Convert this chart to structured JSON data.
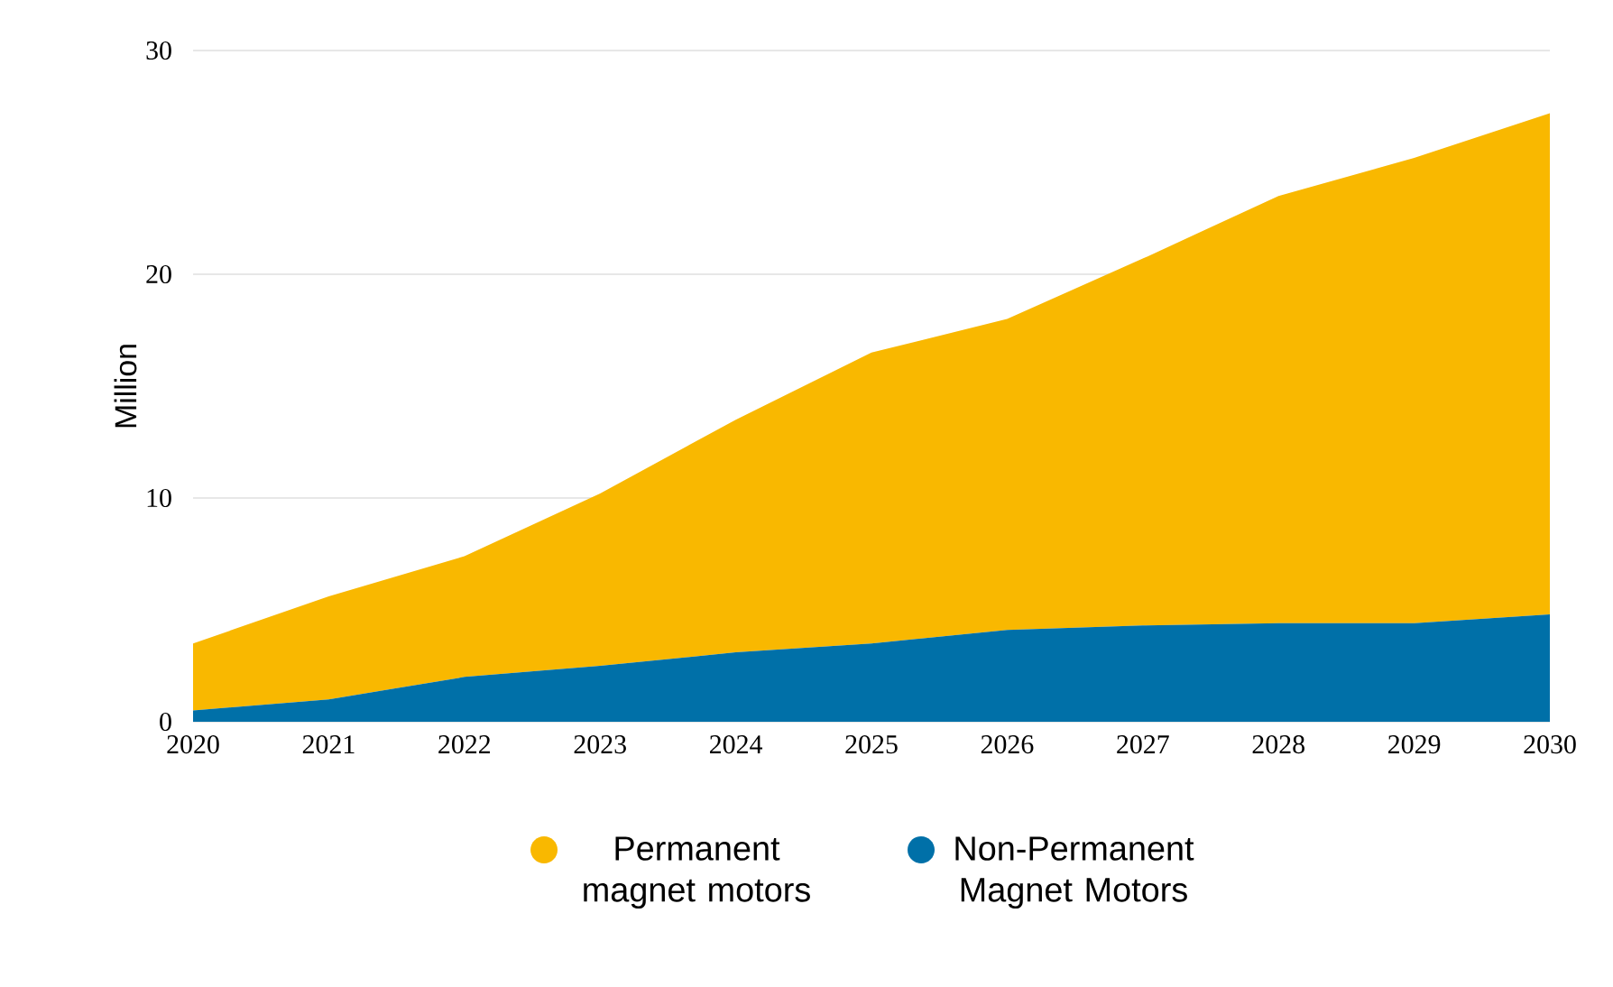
{
  "chart_data": {
    "type": "area",
    "stacked": true,
    "ylabel": "Million",
    "categories": [
      "2020",
      "2021",
      "2022",
      "2023",
      "2024",
      "2025",
      "2026",
      "2027",
      "2028",
      "2029",
      "2030"
    ],
    "series": [
      {
        "name": "Non-Permanent Magnet Motors",
        "color": "#0070a8",
        "values": [
          0.5,
          1.0,
          2.0,
          2.5,
          3.1,
          3.5,
          4.1,
          4.3,
          4.4,
          4.4,
          4.8
        ]
      },
      {
        "name": "Permanent magnet motors",
        "color": "#f9b800",
        "values": [
          3.0,
          4.6,
          5.4,
          7.7,
          10.4,
          13.0,
          13.9,
          16.4,
          19.1,
          20.8,
          22.4
        ]
      }
    ],
    "ylim": [
      0,
      30
    ],
    "yticks": [
      0,
      10,
      20,
      30
    ],
    "grid": "y",
    "legend": "bottom"
  }
}
